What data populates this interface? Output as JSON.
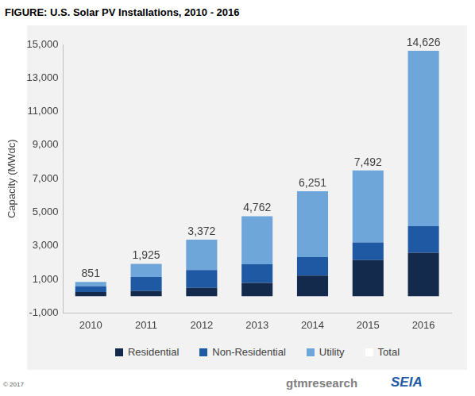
{
  "chart_data": {
    "type": "bar",
    "title": "FIGURE: U.S. Solar PV Installations, 2010 - 2016",
    "y_label": "Capacity (MWdc)",
    "categories": [
      "2010",
      "2011",
      "2012",
      "2013",
      "2014",
      "2015",
      "2016"
    ],
    "series": [
      {
        "name": "Residential",
        "color": "#132a4c",
        "values": [
          246,
          302,
          494,
          792,
          1231,
          2150,
          2583
        ]
      },
      {
        "name": "Non-Residential",
        "color": "#1f58a3",
        "values": [
          343,
          849,
          1072,
          1112,
          1093,
          1050,
          1586
        ]
      },
      {
        "name": "Utility",
        "color": "#6fa6da",
        "values": [
          262,
          774,
          1806,
          2858,
          3927,
          4292,
          10457
        ]
      },
      {
        "name": "Total",
        "color": "#ffffff",
        "type": "line",
        "line_style": "none",
        "marker": "none",
        "data_labels": true,
        "values": [
          851,
          1925,
          3372,
          4762,
          6251,
          7492,
          14626
        ],
        "value_labels": [
          "851",
          "1,925",
          "3,372",
          "4,762",
          "6,251",
          "7,492",
          "14,626"
        ]
      }
    ],
    "ylim": [
      -1000,
      15000
    ],
    "yticks": [
      {
        "value": -1000,
        "label": "-1,000"
      },
      {
        "value": 1000,
        "label": "1,000"
      },
      {
        "value": 3000,
        "label": "3,000"
      },
      {
        "value": 5000,
        "label": "5,000"
      },
      {
        "value": 7000,
        "label": "7,000"
      },
      {
        "value": 9000,
        "label": "9,000"
      },
      {
        "value": 11000,
        "label": "11,000"
      },
      {
        "value": 13000,
        "label": "13,000"
      },
      {
        "value": 15000,
        "label": "15,000"
      }
    ],
    "grid": false,
    "stacked": true,
    "legend": "bottom"
  },
  "footer": {
    "copyright": "© 2017",
    "logos": [
      "gtmresearch",
      "SEIA"
    ]
  }
}
